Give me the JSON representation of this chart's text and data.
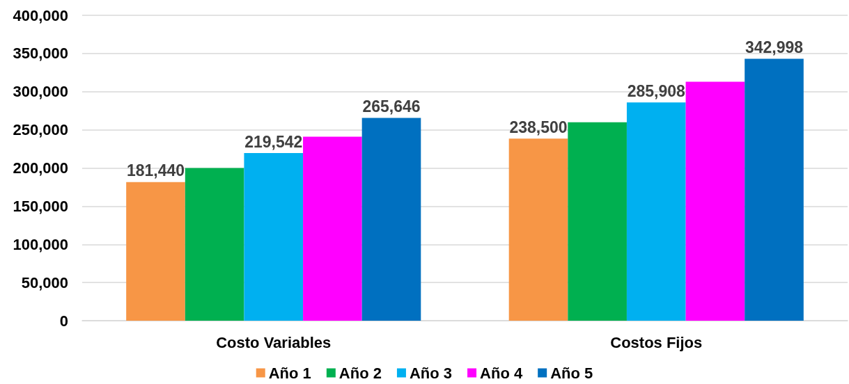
{
  "chart_data": {
    "type": "bar",
    "categories": [
      "Costo Variables",
      "Costos Fijos"
    ],
    "series": [
      {
        "name": "Año 1",
        "color": "#f79646",
        "values": [
          181440,
          238500
        ],
        "value_labels": [
          "181,440",
          "238,500"
        ]
      },
      {
        "name": "Año 2",
        "color": "#00b050",
        "values": [
          200000,
          260000
        ]
      },
      {
        "name": "Año 3",
        "color": "#00b0f0",
        "values": [
          219542,
          285908
        ],
        "value_labels": [
          "219,542",
          "285,908"
        ]
      },
      {
        "name": "Año 4",
        "color": "#ff00ff",
        "values": [
          241000,
          313000
        ]
      },
      {
        "name": "Año 5",
        "color": "#0070c0",
        "values": [
          265646,
          342998
        ],
        "value_labels": [
          "265,646",
          "342,998"
        ]
      }
    ],
    "ylim": [
      0,
      400000
    ],
    "yticks": [
      0,
      {
        "value": 50000,
        "label": "50,000"
      },
      {
        "value": 100000,
        "label": "100,000"
      },
      {
        "value": 150000,
        "label": "150,000"
      },
      {
        "value": 200000,
        "label": "200,000"
      },
      {
        "value": 250000,
        "label": "250,000"
      },
      {
        "value": 300000,
        "label": "300,000"
      },
      {
        "value": 350000,
        "label": "350,000"
      },
      {
        "value": 400000,
        "label": "400,000"
      }
    ],
    "grid": "y",
    "legend": "bottom"
  }
}
